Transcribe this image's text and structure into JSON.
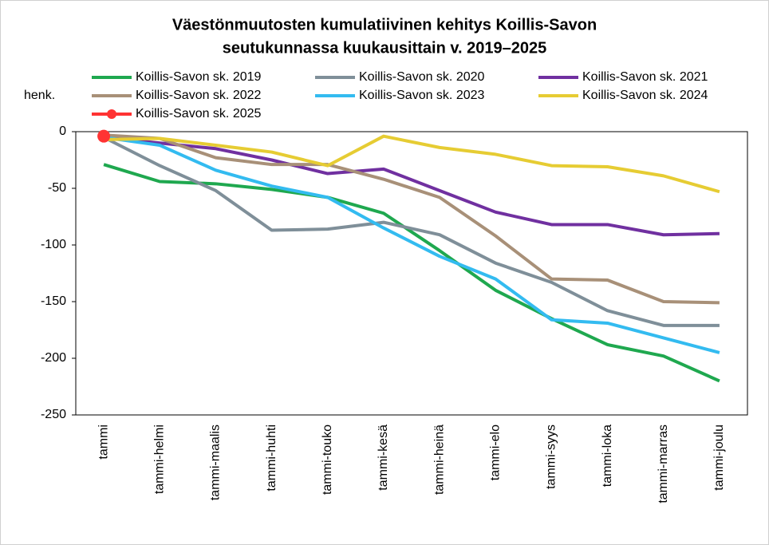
{
  "chart_data": {
    "type": "line",
    "title": [
      "Väestönmuutosten kumulatiivinen kehitys Koillis-Savon",
      "seutukunnassa kuukausittain v. 2019–2025"
    ],
    "y_label": "henk.",
    "categories": [
      "tammi",
      "tammi-helmi",
      "tammi-maalis",
      "tammi-huhti",
      "tammi-touko",
      "tammi-kesä",
      "tammi-heinä",
      "tammi-elo",
      "tammi-syys",
      "tammi-loka",
      "tammi-marras",
      "tammi-joulu"
    ],
    "ylim": [
      -250,
      0
    ],
    "yticks": [
      0,
      -50,
      -100,
      -150,
      -200,
      -250
    ],
    "grid": false,
    "series": [
      {
        "name": "Koillis-Savon sk. 2019",
        "color": "#1fa84f",
        "values": [
          -29,
          -44,
          -46,
          -51,
          -58,
          -72,
          -105,
          -140,
          -165,
          -188,
          -198,
          -220
        ]
      },
      {
        "name": "Koillis-Savon sk. 2020",
        "color": "#7f8f99",
        "values": [
          -5,
          -30,
          -52,
          -87,
          -86,
          -80,
          -91,
          -116,
          -133,
          -158,
          -171,
          -171
        ]
      },
      {
        "name": "Koillis-Savon sk. 2021",
        "color": "#7030a0",
        "values": [
          -5,
          -10,
          -15,
          -25,
          -37,
          -33,
          -52,
          -71,
          -82,
          -82,
          -91,
          -90
        ]
      },
      {
        "name": "Koillis-Savon sk. 2022",
        "color": "#a89078",
        "values": [
          -3,
          -6,
          -23,
          -29,
          -29,
          -42,
          -58,
          -92,
          -130,
          -131,
          -150,
          -151
        ]
      },
      {
        "name": "Koillis-Savon sk. 2023",
        "color": "#33bbf0",
        "values": [
          -5,
          -12,
          -34,
          -48,
          -58,
          -85,
          -110,
          -130,
          -166,
          -169,
          -182,
          -195
        ]
      },
      {
        "name": "Koillis-Savon sk. 2024",
        "color": "#e6cc33",
        "values": [
          -7,
          -6,
          -12,
          -18,
          -30,
          -4,
          -14,
          -20,
          -30,
          -31,
          -39,
          -53
        ]
      },
      {
        "name": "Koillis-Savon sk. 2025",
        "color": "#ff3333",
        "marker": true,
        "values": [
          -4,
          null,
          null,
          null,
          null,
          null,
          null,
          null,
          null,
          null,
          null,
          null
        ]
      }
    ]
  }
}
